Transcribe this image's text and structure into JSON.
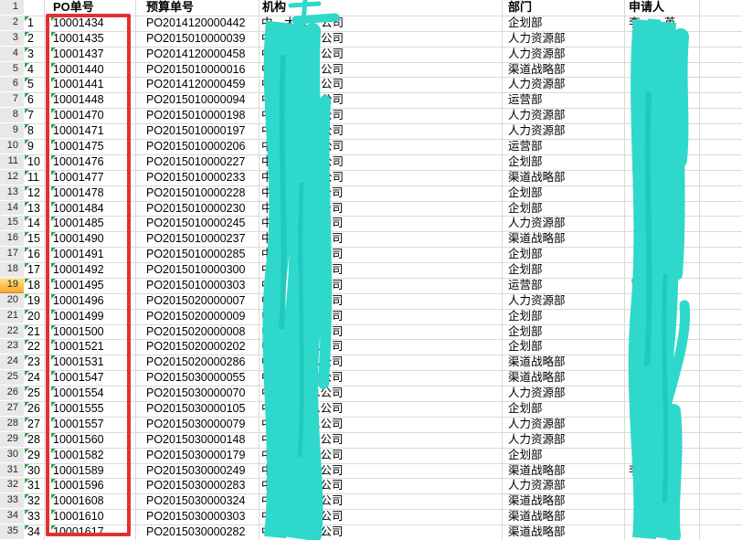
{
  "sheet": {
    "headers": {
      "po": "PO单号",
      "budget": "预算单号",
      "org": "机构",
      "dept": "部门",
      "applicant": "申请人"
    },
    "row_headers": [
      "1",
      "2",
      "3",
      "4",
      "5",
      "6",
      "7",
      "8",
      "9",
      "10",
      "11",
      "12",
      "13",
      "14",
      "15",
      "16",
      "17",
      "18",
      "19",
      "20",
      "21",
      "22",
      "23",
      "24",
      "25",
      "26",
      "27",
      "28",
      "29",
      "30",
      "31",
      "32",
      "33",
      "34",
      "35"
    ],
    "highlight_row": "19",
    "org_prefix": "中",
    "rows": [
      {
        "n": "1",
        "po": "10001434",
        "budget": "PO2014120000442",
        "org_mid": "大海",
        "org_suffix": "公司",
        "dept": "企划部",
        "app": [
          [
            "李",
            688
          ],
          [
            "英",
            727
          ]
        ]
      },
      {
        "n": "2",
        "po": "10001435",
        "budget": "PO2015010000039",
        "org_suffix": "公司",
        "dept": "人力资源部",
        "app": []
      },
      {
        "n": "3",
        "po": "10001437",
        "budget": "PO2014120000458",
        "org_suffix": "公司",
        "dept": "人力资源部",
        "app": []
      },
      {
        "n": "4",
        "po": "10001440",
        "budget": "PO2015010000016",
        "org_suffix": "公司",
        "dept": "渠道战略部",
        "app": []
      },
      {
        "n": "5",
        "po": "10001441",
        "budget": "PO2014120000459",
        "org_suffix": "公司",
        "dept": "人力资源部",
        "app": []
      },
      {
        "n": "6",
        "po": "10001448",
        "budget": "PO2015010000094",
        "org_suffix": "公司",
        "dept": "运营部",
        "app": []
      },
      {
        "n": "7",
        "po": "10001470",
        "budget": "PO2015010000198",
        "org_suffix": "公司",
        "dept": "人力资源部",
        "app": []
      },
      {
        "n": "8",
        "po": "10001471",
        "budget": "PO2015010000197",
        "org_suffix": "公司",
        "dept": "人力资源部",
        "app": []
      },
      {
        "n": "9",
        "po": "10001475",
        "budget": "PO2015010000206",
        "org_suffix": "公司",
        "dept": "运营部",
        "app": []
      },
      {
        "n": "10",
        "po": "10001476",
        "budget": "PO2015010000227",
        "org_suffix": "公司",
        "dept": "企划部",
        "app": []
      },
      {
        "n": "11",
        "po": "10001477",
        "budget": "PO2015010000233",
        "org_suffix": "公司",
        "dept": "渠道战略部",
        "app": []
      },
      {
        "n": "12",
        "po": "10001478",
        "budget": "PO2015010000228",
        "org_suffix": "总公司",
        "dept": "企划部",
        "app": []
      },
      {
        "n": "13",
        "po": "10001484",
        "budget": "PO2015010000230",
        "org_suffix": "总公司",
        "dept": "企划部",
        "app": []
      },
      {
        "n": "14",
        "po": "10001485",
        "budget": "PO2015010000245",
        "org_suffix": "总公司",
        "dept": "人力资源部",
        "app": []
      },
      {
        "n": "15",
        "po": "10001490",
        "budget": "PO2015010000237",
        "org_suffix": "总公司",
        "dept": "渠道战略部",
        "app": []
      },
      {
        "n": "16",
        "po": "10001491",
        "budget": "PO2015010000285",
        "org_suffix": "总公司",
        "dept": "企划部",
        "app": []
      },
      {
        "n": "17",
        "po": "10001492",
        "budget": "PO2015010000300",
        "org_suffix": "总公司",
        "dept": "企划部",
        "app": []
      },
      {
        "n": "18",
        "po": "10001495",
        "budget": "PO2015010000303",
        "org_suffix": "总公司",
        "dept": "运营部",
        "app": [
          [
            "司",
            690
          ]
        ]
      },
      {
        "n": "19",
        "po": "10001496",
        "budget": "PO2015020000007",
        "org_suffix": "总公司",
        "dept": "人力资源部",
        "app": []
      },
      {
        "n": "20",
        "po": "10001499",
        "budget": "PO2015020000009",
        "org_suffix": "总公司",
        "dept": "企划部",
        "app": []
      },
      {
        "n": "21",
        "po": "10001500",
        "budget": "PO2015020000008",
        "org_suffix": "总公司",
        "dept": "企划部",
        "app": []
      },
      {
        "n": "22",
        "po": "10001521",
        "budget": "PO2015020000202",
        "org_suffix": "总公司",
        "dept": "企划部",
        "app": []
      },
      {
        "n": "23",
        "po": "10001531",
        "budget": "PO2015020000286",
        "org_suffix": "总公司",
        "dept": "渠道战略部",
        "app": []
      },
      {
        "n": "24",
        "po": "10001547",
        "budget": "PO2015030000055",
        "org_suffix": "总公司",
        "dept": "渠道战略部",
        "app": []
      },
      {
        "n": "25",
        "po": "10001554",
        "budget": "PO2015030000070",
        "org_suffix": "总公司",
        "dept": "人力资源部",
        "app": []
      },
      {
        "n": "26",
        "po": "10001555",
        "budget": "PO2015030000105",
        "org_suffix": "总公司",
        "dept": "企划部",
        "app": []
      },
      {
        "n": "27",
        "po": "10001557",
        "budget": "PO2015030000079",
        "org_suffix": "总公司",
        "dept": "人力资源部",
        "app": []
      },
      {
        "n": "28",
        "po": "10001560",
        "budget": "PO2015030000148",
        "org_suffix": "总公司",
        "dept": "人力资源部",
        "app": []
      },
      {
        "n": "29",
        "po": "10001582",
        "budget": "PO2015030000179",
        "org_suffix": "总公司",
        "dept": "企划部",
        "app": []
      },
      {
        "n": "30",
        "po": "10001589",
        "budget": "PO2015030000249",
        "org_suffix": "总公司",
        "dept": "渠道战略部",
        "app": [
          [
            "李雪",
            688
          ]
        ]
      },
      {
        "n": "31",
        "po": "10001596",
        "budget": "PO2015030000283",
        "org_suffix": "总公司",
        "dept": "人力资源部",
        "app": []
      },
      {
        "n": "32",
        "po": "10001608",
        "budget": "PO2015030000324",
        "org_suffix": "总公司",
        "dept": "渠道战略部",
        "app": []
      },
      {
        "n": "33",
        "po": "10001610",
        "budget": "PO2015030000303",
        "org_suffix": "总公司",
        "dept": "渠道战略部",
        "app": []
      },
      {
        "n": "34",
        "po": "10001617",
        "budget": "PO2015030000282",
        "org_suffix": "总公司",
        "dept": "渠道战略部",
        "app": []
      }
    ],
    "annotations": {
      "red_box_column": "PO单号",
      "scribble_color": "#2ED8CB",
      "red_box_color": "#E03131",
      "row_highlight_color": "#FBC34F"
    }
  }
}
